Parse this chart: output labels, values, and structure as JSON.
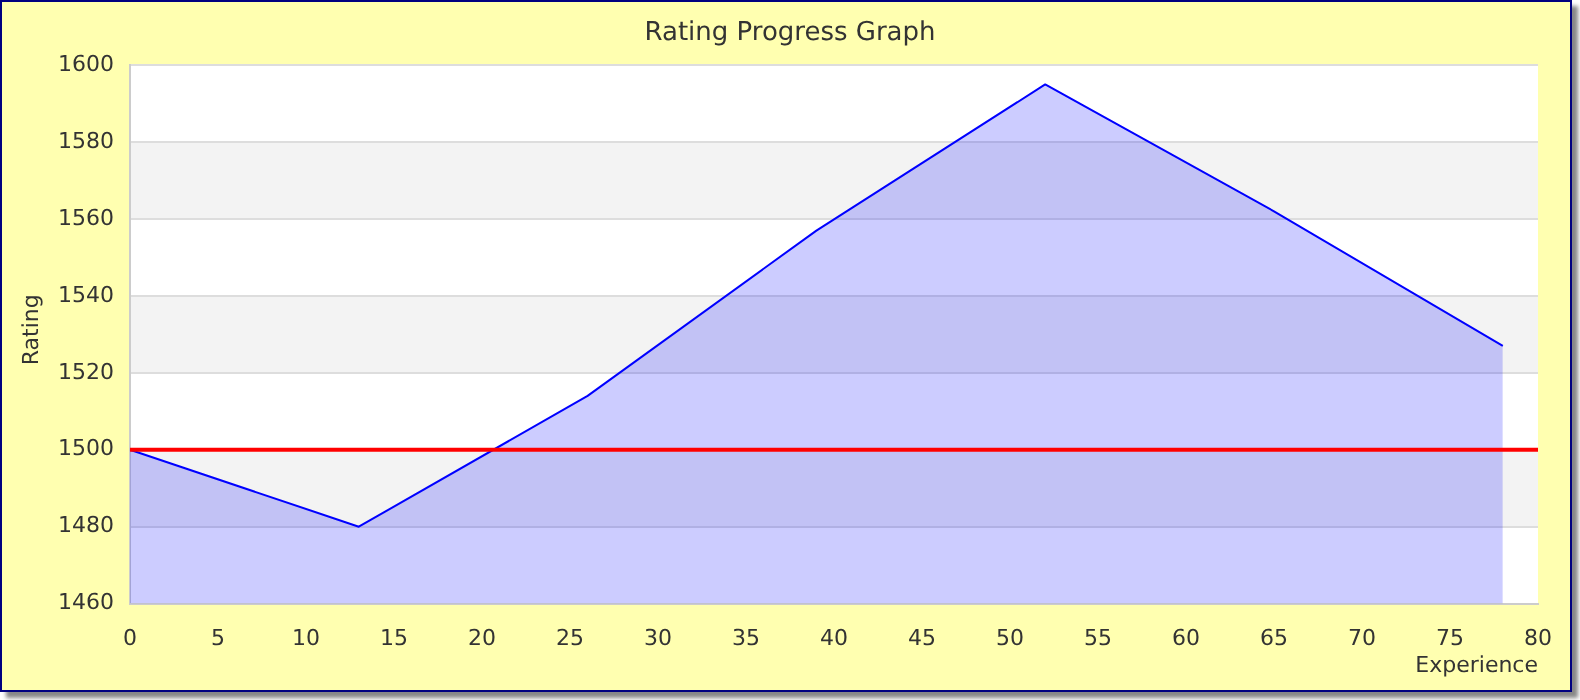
{
  "chart_data": {
    "type": "area",
    "title": "Rating Progress Graph",
    "xlabel": "Experience",
    "ylabel": "Rating",
    "x": [
      0,
      13,
      26,
      39,
      52,
      65,
      78
    ],
    "series": [
      {
        "color": "#0000ff",
        "values": [
          1500,
          1480,
          1514,
          1557,
          1595,
          1562,
          1527
        ]
      }
    ],
    "xlim": [
      0,
      80
    ],
    "xticks": [
      0,
      5,
      10,
      15,
      20,
      25,
      30,
      35,
      40,
      45,
      50,
      55,
      60,
      65,
      70,
      75,
      80
    ],
    "ylim": [
      1460,
      1600
    ],
    "yticks": [
      1460,
      1480,
      1500,
      1520,
      1540,
      1560,
      1580,
      1600
    ],
    "ref_lines": [
      {
        "axis": "y",
        "value": 1500,
        "color": "#ff0000"
      }
    ],
    "grid": "y",
    "legend": false,
    "marker": "none",
    "line_style": "solid"
  }
}
